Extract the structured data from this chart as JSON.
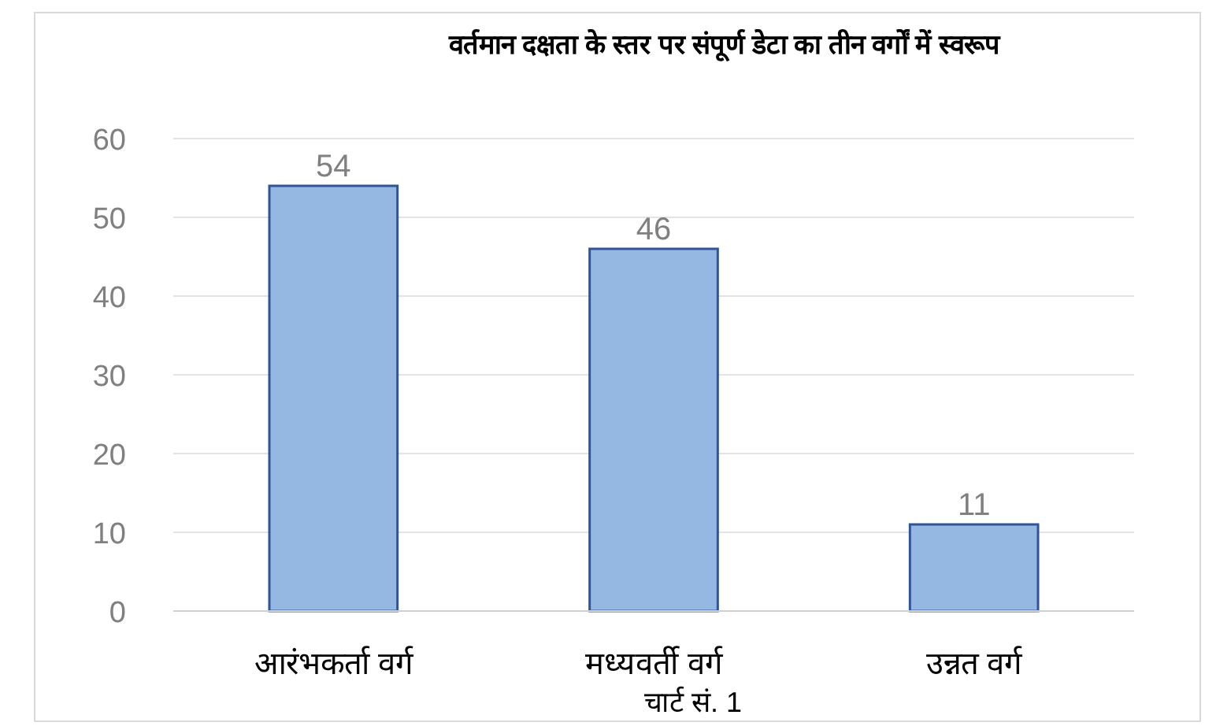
{
  "chart_data": {
    "type": "bar",
    "title": "वर्तमान दक्षता के स्तर पर संपूर्ण डेटा का तीन वर्गों में स्वरूप",
    "categories": [
      "आरंभकर्ता वर्ग",
      "मध्यवर्ती वर्ग",
      "उन्नत वर्ग"
    ],
    "values": [
      54,
      46,
      11
    ],
    "color": "#95b8e3",
    "ylim": [
      0,
      60
    ],
    "yticks": [
      0,
      10,
      20,
      30,
      40,
      50,
      60
    ],
    "grid": "y",
    "data_labels": true,
    "annotations": [
      "चार्ट सं. 1"
    ]
  }
}
